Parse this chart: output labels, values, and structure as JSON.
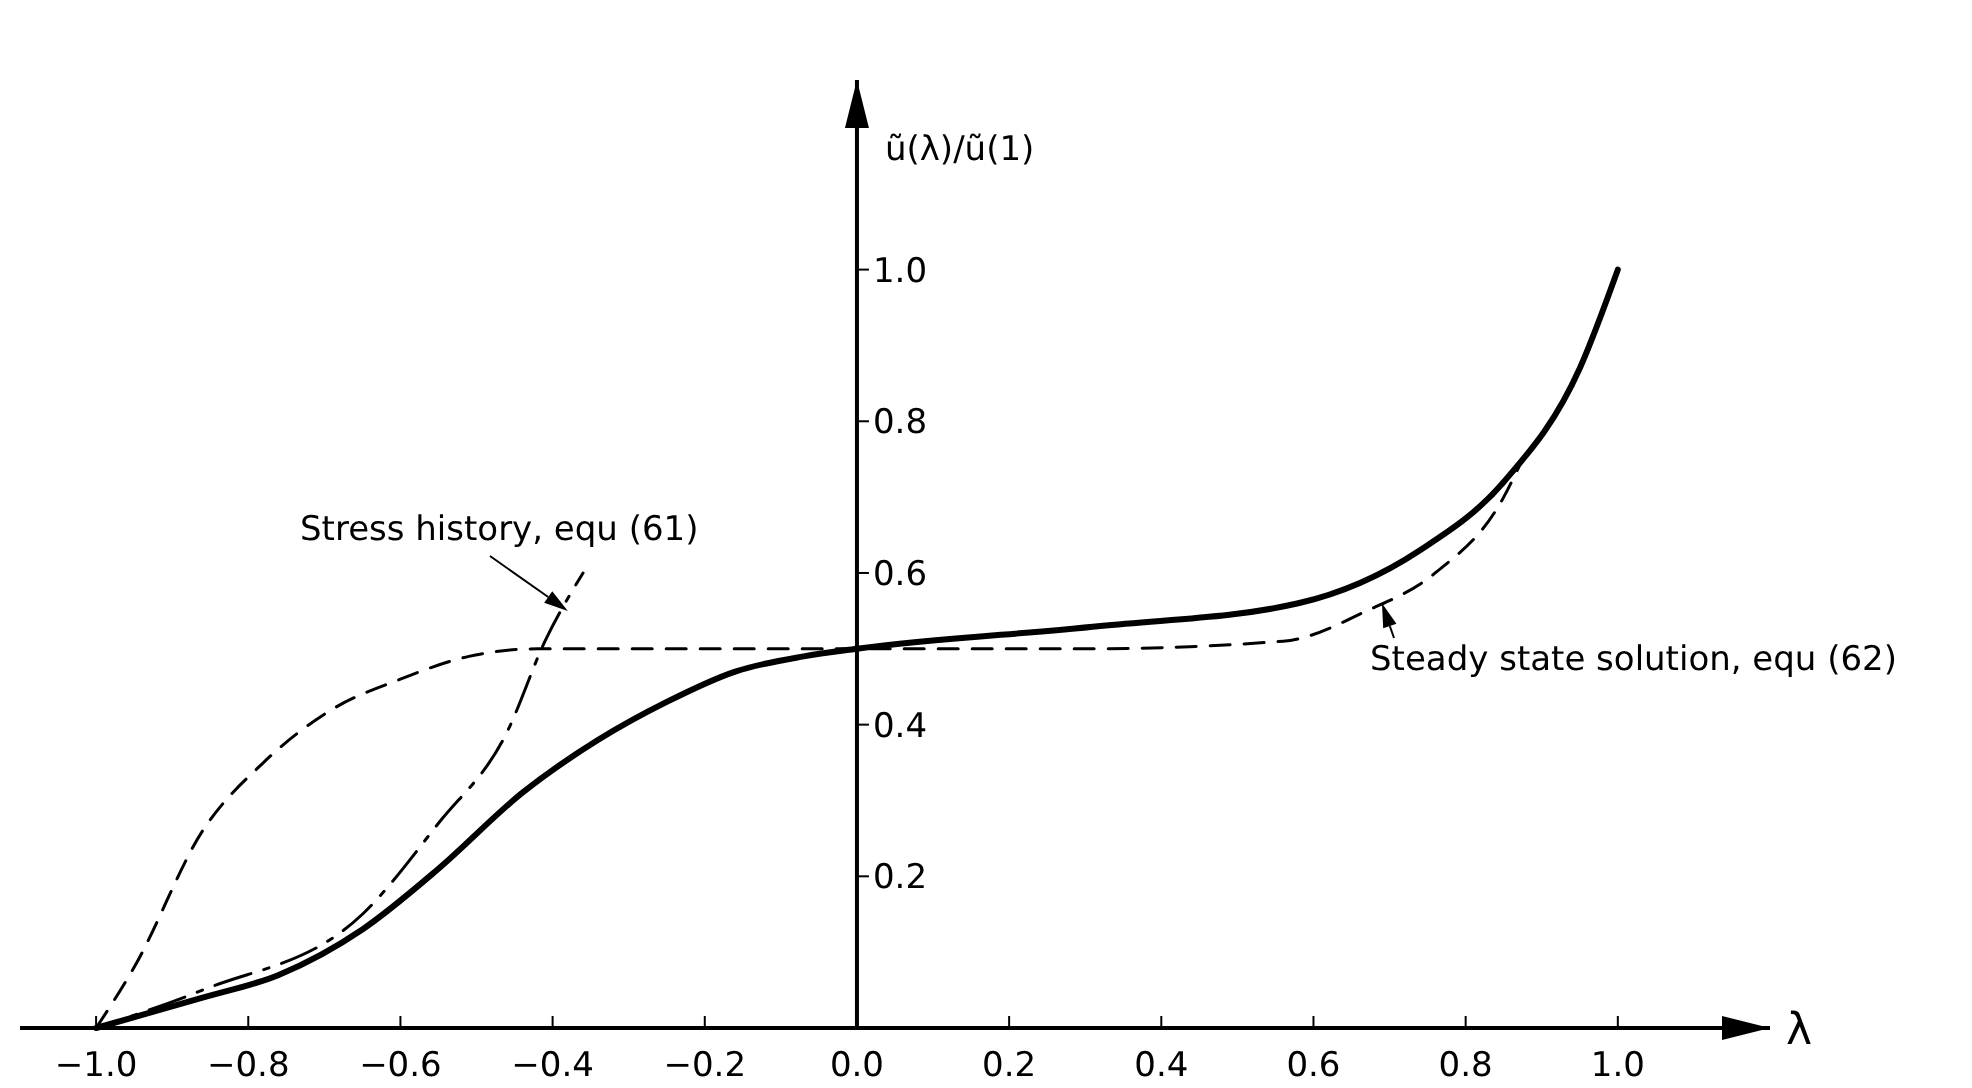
{
  "chart_data": {
    "type": "line",
    "xlabel": "λ",
    "ylabel": "ũ(λ)/ũ(1)",
    "xlim": [
      -1.1,
      1.2
    ],
    "ylim": [
      0,
      1.25
    ],
    "xticks": [
      {
        "value": -1.0,
        "label": "−1.0"
      },
      {
        "value": -0.8,
        "label": "−0.8"
      },
      {
        "value": -0.6,
        "label": "−0.6"
      },
      {
        "value": -0.4,
        "label": "−0.4"
      },
      {
        "value": -0.2,
        "label": "−0.2"
      },
      {
        "value": 0.0,
        "label": "0.0"
      },
      {
        "value": 0.2,
        "label": "0.2"
      },
      {
        "value": 0.4,
        "label": "0.4"
      },
      {
        "value": 0.6,
        "label": "0.6"
      },
      {
        "value": 0.8,
        "label": "0.8"
      },
      {
        "value": 1.0,
        "label": "1.0"
      }
    ],
    "yticks": [
      {
        "value": 0.2,
        "label": "0.2"
      },
      {
        "value": 0.4,
        "label": "0.4"
      },
      {
        "value": 0.6,
        "label": "0.6"
      },
      {
        "value": 0.8,
        "label": "0.8"
      },
      {
        "value": 1.0,
        "label": "1.0"
      }
    ],
    "grid": false,
    "marker": "none",
    "series": [
      {
        "color": "#000000",
        "line_style": "solid",
        "x": [
          -1.0,
          -0.86,
          -0.76,
          -0.65,
          -0.55,
          -0.44,
          -0.34,
          -0.25,
          -0.16,
          -0.07,
          0.0,
          0.32,
          0.58,
          0.74,
          0.85,
          0.95,
          1.0
        ],
        "values": [
          0.0,
          0.04,
          0.07,
          0.13,
          0.21,
          0.31,
          0.38,
          0.43,
          0.47,
          0.49,
          0.5,
          0.53,
          0.56,
          0.63,
          0.72,
          0.87,
          1.0
        ]
      },
      {
        "color": "#000000",
        "line_style": "dashed",
        "x": [
          -1.0,
          -0.95,
          -0.86,
          -0.78,
          -0.69,
          -0.6,
          -0.51,
          -0.42,
          -0.2,
          0.0,
          0.3,
          0.56,
          0.67,
          0.76,
          0.85,
          0.87
        ],
        "values": [
          0.0,
          0.08,
          0.26,
          0.35,
          0.42,
          0.46,
          0.49,
          0.5,
          0.5,
          0.5,
          0.5,
          0.51,
          0.55,
          0.6,
          0.7,
          0.74
        ]
      },
      {
        "color": "#000000",
        "line_style": "dashdot",
        "x": [
          -1.0,
          -0.86,
          -0.65,
          -0.55,
          -0.46,
          -0.41,
          -0.36
        ],
        "values": [
          0.0,
          0.05,
          0.15,
          0.27,
          0.39,
          0.51,
          0.6
        ]
      }
    ],
    "annotations": [
      {
        "text": "Stress history, equ (61)",
        "x": -0.38,
        "y": 0.55
      },
      {
        "text": "Steady state solution, equ (62)",
        "x": 0.69,
        "y": 0.56
      }
    ]
  }
}
